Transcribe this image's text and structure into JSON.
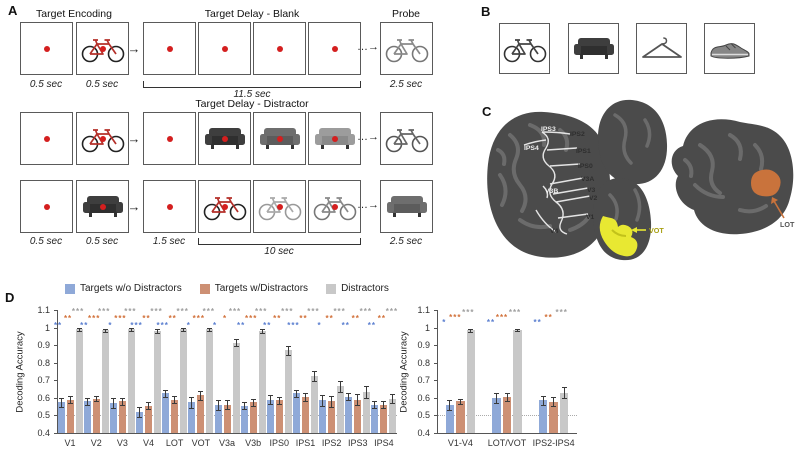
{
  "panels": {
    "a": "A",
    "b": "B",
    "c": "C",
    "d": "D"
  },
  "panelA": {
    "labels": {
      "encoding": "Target Encoding",
      "delay_blank": "Target Delay - Blank",
      "probe": "Probe",
      "delay_distractor": "Target Delay  - Distractor"
    },
    "timings": {
      "enc_fix": "0.5 sec",
      "enc_stim": "0.5 sec",
      "blank_delay": "11.5 sec",
      "probe": "2.5 sec",
      "post_cue_fix": "1.5 sec",
      "distractor_period": "10 sec",
      "probe2": "2.5 sec",
      "enc_fix2": "0.5 sec",
      "enc_stim2": "0.5 sec"
    },
    "rows": [
      {
        "cells": [
          {
            "type": "fix"
          },
          {
            "type": "stim",
            "icon": "bicycle-red",
            "dot": true
          },
          {
            "type": "arrow"
          },
          {
            "type": "fix"
          },
          {
            "type": "fix"
          },
          {
            "type": "fix"
          },
          {
            "type": "fix"
          },
          {
            "type": "ellipsis"
          },
          {
            "type": "stim",
            "icon": "bicycle-gray",
            "dot": false
          }
        ]
      },
      {
        "cells": [
          {
            "type": "fix"
          },
          {
            "type": "stim",
            "icon": "bicycle-red",
            "dot": true
          },
          {
            "type": "arrow"
          },
          {
            "type": "fix"
          },
          {
            "type": "stim",
            "icon": "couch-dark",
            "dot": true
          },
          {
            "type": "stim",
            "icon": "couch-mid",
            "dot": true
          },
          {
            "type": "stim",
            "icon": "couch-light",
            "dot": true
          },
          {
            "type": "ellipsis"
          },
          {
            "type": "stim",
            "icon": "bicycle-cruiser",
            "dot": false
          }
        ]
      },
      {
        "cells": [
          {
            "type": "fix"
          },
          {
            "type": "stim",
            "icon": "couch-dark",
            "dot": true
          },
          {
            "type": "arrow"
          },
          {
            "type": "fix"
          },
          {
            "type": "stim",
            "icon": "bicycle-red",
            "dot": true
          },
          {
            "type": "stim",
            "icon": "bicycle-light",
            "dot": true
          },
          {
            "type": "stim",
            "icon": "bicycle-mid",
            "dot": true
          },
          {
            "type": "ellipsis"
          },
          {
            "type": "stim",
            "icon": "couch-mid",
            "dot": false
          }
        ]
      }
    ],
    "arrow_glyph": "→",
    "ellipsis_glyph": "…→"
  },
  "panelB": {
    "items": [
      {
        "name": "bicycle",
        "icon": "bicycle-dark"
      },
      {
        "name": "couch",
        "icon": "couch-dark"
      },
      {
        "name": "hanger",
        "icon": "hanger"
      },
      {
        "name": "shoe",
        "icon": "shoe"
      }
    ]
  },
  "panelC": {
    "regions": [
      {
        "name": "IPS3",
        "style": "light"
      },
      {
        "name": "IPS2",
        "style": "dark"
      },
      {
        "name": "IPS4",
        "style": "light"
      },
      {
        "name": "IPS1",
        "style": "dark"
      },
      {
        "name": "IPS0",
        "style": "dark"
      },
      {
        "name": "V3A",
        "style": "dark"
      },
      {
        "name": "V3",
        "style": "dark"
      },
      {
        "name": "V2",
        "style": "dark"
      },
      {
        "name": "V1",
        "style": "dark"
      },
      {
        "name": "V3B",
        "style": "light"
      },
      {
        "name": "V4",
        "style": "dark"
      }
    ],
    "vot_label": "VOT",
    "lot_label": "LOT",
    "vot_color": "#e8e832",
    "lot_color": "#c9733c"
  },
  "chart_data": [
    {
      "type": "bar",
      "ylabel": "Decoding Accuracy",
      "ylim": [
        0.4,
        1.1
      ],
      "yticks": [
        0.4,
        0.5,
        0.6,
        0.7,
        0.8,
        0.9,
        1,
        1.1
      ],
      "chance_line": 0.5,
      "legend_position": "top",
      "categories": [
        "V1",
        "V2",
        "V3",
        "V4",
        "LOT",
        "VOT",
        "V3a",
        "V3b",
        "IPS0",
        "IPS1",
        "IPS2",
        "IPS3",
        "IPS4"
      ],
      "series": [
        {
          "name": "Targets w/o Distractors",
          "color": "#8fa9d8",
          "values": [
            0.575,
            0.58,
            0.57,
            0.52,
            0.625,
            0.575,
            0.56,
            0.555,
            0.59,
            0.625,
            0.585,
            0.605,
            0.56
          ],
          "errors": [
            0.025,
            0.02,
            0.03,
            0.03,
            0.02,
            0.03,
            0.03,
            0.02,
            0.025,
            0.02,
            0.03,
            0.02,
            0.02
          ],
          "sig": [
            "**",
            "**",
            "*",
            "***",
            "***",
            "*",
            "*",
            "**",
            "**",
            "***",
            "*",
            "**",
            "**"
          ]
        },
        {
          "name": "Targets w/Distractors",
          "color": "#cd9074",
          "values": [
            0.59,
            0.595,
            0.58,
            0.555,
            0.59,
            0.615,
            0.56,
            0.575,
            0.585,
            0.605,
            0.58,
            0.59,
            0.56
          ],
          "errors": [
            0.02,
            0.015,
            0.02,
            0.02,
            0.02,
            0.025,
            0.025,
            0.02,
            0.02,
            0.025,
            0.03,
            0.03,
            0.02
          ],
          "sig": [
            "**",
            "***",
            "***",
            "**",
            "**",
            "***",
            "*",
            "***",
            "**",
            "**",
            "**",
            "**",
            "**"
          ]
        },
        {
          "name": "Distractors",
          "color": "#c8c8c8",
          "values": [
            0.99,
            0.985,
            0.99,
            0.98,
            0.99,
            0.99,
            0.915,
            0.98,
            0.87,
            0.725,
            0.665,
            0.635,
            0.595
          ],
          "errors": [
            0.01,
            0.008,
            0.008,
            0.012,
            0.008,
            0.01,
            0.02,
            0.012,
            0.025,
            0.03,
            0.03,
            0.035,
            0.025
          ],
          "sig": [
            "***",
            "***",
            "***",
            "***",
            "***",
            "***",
            "***",
            "***",
            "***",
            "***",
            "***",
            "***",
            "***"
          ]
        }
      ],
      "sig_colors": [
        "#5b7fd0",
        "#d2713a",
        "#a0a0a0"
      ]
    },
    {
      "type": "bar",
      "ylabel": "Decoding Accuracy",
      "ylim": [
        0.4,
        1.1
      ],
      "yticks": [
        0.4,
        0.5,
        0.6,
        0.7,
        0.8,
        0.9,
        1,
        1.1
      ],
      "chance_line": 0.5,
      "legend_position": "none",
      "categories": [
        "V1-V4",
        "LOT/VOT",
        "IPS2-IPS4"
      ],
      "series": [
        {
          "name": "Targets w/o Distractors",
          "color": "#8fa9d8",
          "values": [
            0.56,
            0.6,
            0.585
          ],
          "errors": [
            0.03,
            0.03,
            0.025
          ],
          "sig": [
            "*",
            "**",
            "**"
          ]
        },
        {
          "name": "Targets w/Distractors",
          "color": "#cd9074",
          "values": [
            0.58,
            0.605,
            0.578
          ],
          "errors": [
            0.015,
            0.025,
            0.025
          ],
          "sig": [
            "***",
            "***",
            "**"
          ]
        },
        {
          "name": "Distractors",
          "color": "#c8c8c8",
          "values": [
            0.985,
            0.985,
            0.63
          ],
          "errors": [
            0.008,
            0.005,
            0.03
          ],
          "sig": [
            "***",
            "***",
            "***"
          ]
        }
      ],
      "sig_colors": [
        "#5b7fd0",
        "#d2713a",
        "#a0a0a0"
      ]
    }
  ]
}
